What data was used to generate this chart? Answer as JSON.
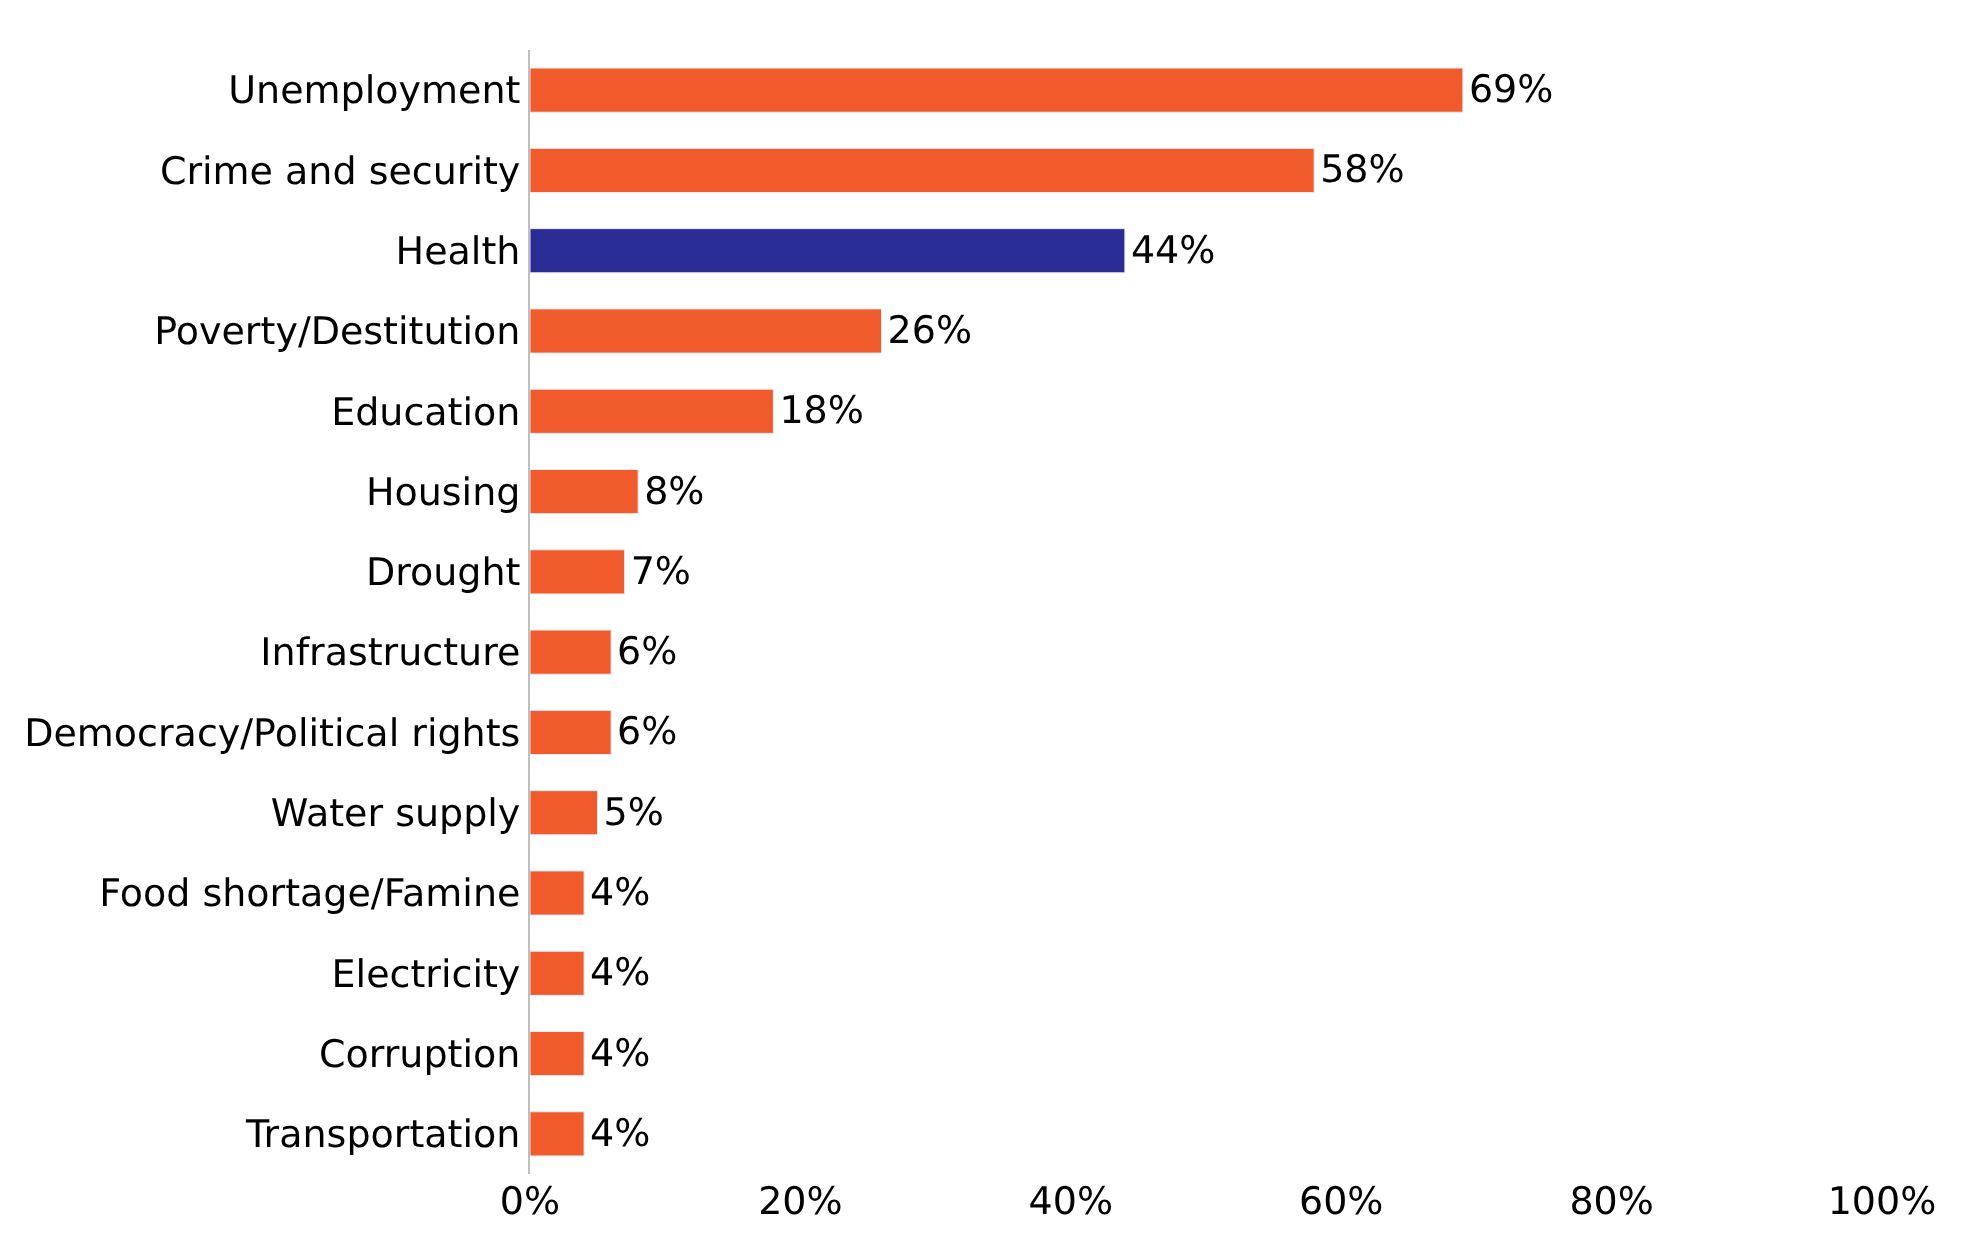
{
  "chart_data": {
    "type": "bar",
    "orientation": "horizontal",
    "categories": [
      "Unemployment",
      "Crime and security",
      "Health",
      "Poverty/Destitution",
      "Education",
      "Housing",
      "Drought",
      "Infrastructure",
      "Democracy/Political rights",
      "Water supply",
      "Food shortage/Famine",
      "Electricity",
      "Corruption",
      "Transportation"
    ],
    "values": [
      69,
      58,
      44,
      26,
      18,
      8,
      7,
      6,
      6,
      5,
      4,
      4,
      4,
      4
    ],
    "colors": [
      "#f15a2b",
      "#f15a2b",
      "#2b2b96",
      "#f15a2b",
      "#f15a2b",
      "#f15a2b",
      "#f15a2b",
      "#f15a2b",
      "#f15a2b",
      "#f15a2b",
      "#f15a2b",
      "#f15a2b",
      "#f15a2b",
      "#f15a2b"
    ],
    "value_labels": [
      "69%",
      "58%",
      "44%",
      "26%",
      "18%",
      "8%",
      "7%",
      "6%",
      "6%",
      "5%",
      "4%",
      "4%",
      "4%",
      "4%"
    ],
    "xlim": [
      0,
      100
    ],
    "xticks": [
      {
        "value": 0,
        "label": "0%"
      },
      {
        "value": 20,
        "label": "20%"
      },
      {
        "value": 40,
        "label": "40%"
      },
      {
        "value": 60,
        "label": "60%"
      },
      {
        "value": 80,
        "label": "80%"
      },
      {
        "value": 100,
        "label": "100%"
      }
    ],
    "legend": false
  }
}
